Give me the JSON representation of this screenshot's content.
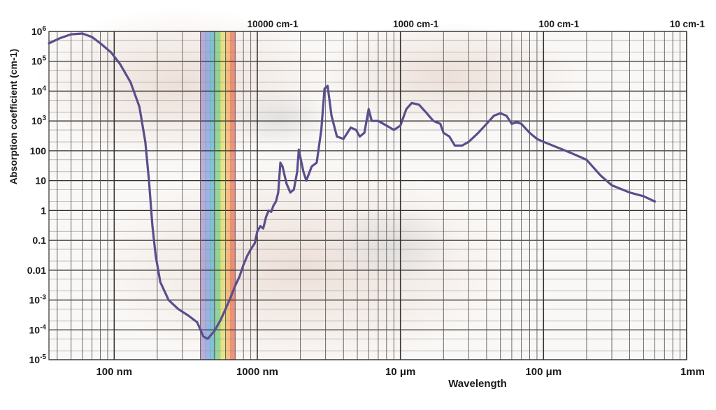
{
  "chart_data": {
    "type": "line",
    "xlabel": "Wavelength",
    "ylabel": "Absorption coefficient (cm-1)",
    "x_scale": "log",
    "y_scale": "log",
    "xlim_m": [
      3.5e-08,
      0.001
    ],
    "ylim": [
      1e-05,
      1000000.0
    ],
    "grid": true,
    "line_color": "#5a4e8c",
    "visible_band_m": [
      4e-07,
      7e-07
    ],
    "visible_band_colors": [
      "#9a7fc7",
      "#5c8fd6",
      "#3fa7c2",
      "#5cc25c",
      "#d8d84a",
      "#f0a23c",
      "#e8553a"
    ],
    "y_tick_labels": [
      {
        "value": 1e-05,
        "base": "10",
        "exp": "-5"
      },
      {
        "value": 0.0001,
        "base": "10",
        "exp": "-4"
      },
      {
        "value": 0.001,
        "base": "10",
        "exp": "-3"
      },
      {
        "value": 0.01,
        "text": "0.01"
      },
      {
        "value": 0.1,
        "text": "0.1"
      },
      {
        "value": 1,
        "text": "1"
      },
      {
        "value": 10,
        "text": "10"
      },
      {
        "value": 100,
        "text": "100"
      },
      {
        "value": 1000.0,
        "base": "10",
        "exp": "3"
      },
      {
        "value": 10000.0,
        "base": "10",
        "exp": "4"
      },
      {
        "value": 100000.0,
        "base": "10",
        "exp": "5"
      },
      {
        "value": 1000000.0,
        "base": "10",
        "exp": "6"
      }
    ],
    "x_tick_labels_bottom": [
      {
        "value_m": 1e-07,
        "text": "100 nm"
      },
      {
        "value_m": 1e-06,
        "text": "1000 nm"
      },
      {
        "value_m": 1e-05,
        "text": "10 μm"
      },
      {
        "value_m": 0.0001,
        "text": "100 μm"
      },
      {
        "value_m": 0.001,
        "text": "1mm"
      }
    ],
    "x_tick_labels_top": [
      {
        "value_m": 1e-06,
        "text": "10000 cm-1"
      },
      {
        "value_m": 1e-05,
        "text": "1000 cm-1"
      },
      {
        "value_m": 0.0001,
        "text": "100 cm-1"
      },
      {
        "value_m": 0.001,
        "text": "10 cm-1"
      }
    ],
    "series": [
      {
        "points": [
          [
            3.5e-08,
            400000.0
          ],
          [
            4.2e-08,
            600000.0
          ],
          [
            5e-08,
            800000.0
          ],
          [
            6e-08,
            850000.0
          ],
          [
            7e-08,
            650000.0
          ],
          [
            8e-08,
            400000.0
          ],
          [
            9.5e-08,
            200000.0
          ],
          [
            1.1e-07,
            80000.0
          ],
          [
            1.3e-07,
            20000.0
          ],
          [
            1.5e-07,
            3000.0
          ],
          [
            1.65e-07,
            200
          ],
          [
            1.75e-07,
            10
          ],
          [
            1.85e-07,
            0.3
          ],
          [
            1.95e-07,
            0.03
          ],
          [
            2.1e-07,
            0.004
          ],
          [
            2.4e-07,
            0.001
          ],
          [
            2.8e-07,
            0.0005
          ],
          [
            3.3e-07,
            0.0003
          ],
          [
            3.8e-07,
            0.00018
          ],
          [
            4.2e-07,
            6e-05
          ],
          [
            4.5e-07,
            5e-05
          ],
          [
            5e-07,
            9e-05
          ],
          [
            5.5e-07,
            0.0002
          ],
          [
            6e-07,
            0.0005
          ],
          [
            6.5e-07,
            0.0012
          ],
          [
            7e-07,
            0.003
          ],
          [
            7.5e-07,
            0.006
          ],
          [
            8e-07,
            0.015
          ],
          [
            8.5e-07,
            0.03
          ],
          [
            9e-07,
            0.05
          ],
          [
            9.6e-07,
            0.08
          ],
          [
            1e-06,
            0.2
          ],
          [
            1.05e-06,
            0.3
          ],
          [
            1.1e-06,
            0.25
          ],
          [
            1.15e-06,
            0.6
          ],
          [
            1.2e-06,
            1.0
          ],
          [
            1.25e-06,
            0.9
          ],
          [
            1.3e-06,
            1.5
          ],
          [
            1.35e-06,
            2.0
          ],
          [
            1.4e-06,
            4.0
          ],
          [
            1.45e-06,
            40
          ],
          [
            1.5e-06,
            30
          ],
          [
            1.6e-06,
            8
          ],
          [
            1.7e-06,
            4
          ],
          [
            1.8e-06,
            5
          ],
          [
            1.9e-06,
            20
          ],
          [
            1.95e-06,
            110
          ],
          [
            2e-06,
            60
          ],
          [
            2.1e-06,
            20
          ],
          [
            2.2e-06,
            10
          ],
          [
            2.4e-06,
            30
          ],
          [
            2.6e-06,
            40
          ],
          [
            2.8e-06,
            500
          ],
          [
            2.95e-06,
            12000.0
          ],
          [
            3.1e-06,
            15000.0
          ],
          [
            3.3e-06,
            1500
          ],
          [
            3.6e-06,
            300
          ],
          [
            4e-06,
            250
          ],
          [
            4.5e-06,
            600
          ],
          [
            4.9e-06,
            500
          ],
          [
            5.2e-06,
            300
          ],
          [
            5.6e-06,
            400
          ],
          [
            6e-06,
            2500
          ],
          [
            6.3e-06,
            1000
          ],
          [
            7e-06,
            1000
          ],
          [
            8e-06,
            700
          ],
          [
            9e-06,
            500
          ],
          [
            1e-05,
            700
          ],
          [
            1.1e-05,
            2500
          ],
          [
            1.2e-05,
            4000
          ],
          [
            1.35e-05,
            3500
          ],
          [
            1.5e-05,
            2000
          ],
          [
            1.7e-05,
            1000
          ],
          [
            1.9e-05,
            800
          ],
          [
            2e-05,
            400
          ],
          [
            2.2e-05,
            300
          ],
          [
            2.4e-05,
            150
          ],
          [
            2.7e-05,
            150
          ],
          [
            3e-05,
            200
          ],
          [
            3.5e-05,
            400
          ],
          [
            4e-05,
            800
          ],
          [
            4.5e-05,
            1500
          ],
          [
            5e-05,
            1800
          ],
          [
            5.5e-05,
            1500
          ],
          [
            6e-05,
            800
          ],
          [
            6.5e-05,
            900
          ],
          [
            7e-05,
            800
          ],
          [
            8e-05,
            400
          ],
          [
            9e-05,
            250
          ],
          [
            0.0001,
            200
          ],
          [
            0.00013,
            120
          ],
          [
            0.00016,
            80
          ],
          [
            0.0002,
            50
          ],
          [
            0.00025,
            15
          ],
          [
            0.0003,
            7
          ],
          [
            0.0004,
            4
          ],
          [
            0.0005,
            3
          ],
          [
            0.0006,
            2
          ]
        ]
      }
    ]
  }
}
